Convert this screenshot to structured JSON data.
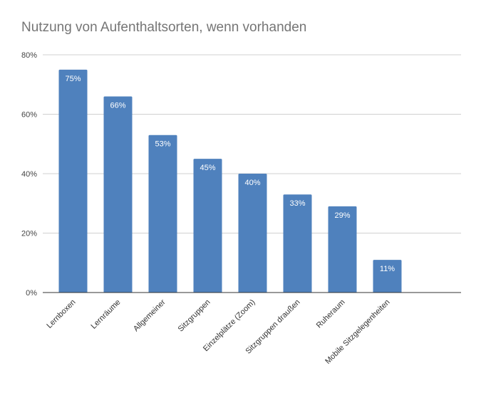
{
  "chart_data": {
    "type": "bar",
    "title": "Nutzung von Aufenthaltsorten, wenn vorhanden",
    "xlabel": "",
    "ylabel": "",
    "categories": [
      "Lernboxen",
      "Lernräume",
      "Allgemeiner",
      "Sitzgruppen",
      "Einzelplätze (Zoom)",
      "Sitzgruppen draußen",
      "Ruheraum",
      "Mobile Sitzgelegenheiten"
    ],
    "values": [
      75,
      66,
      53,
      45,
      40,
      33,
      29,
      11
    ],
    "data_labels": [
      "75%",
      "66%",
      "53%",
      "45%",
      "40%",
      "33%",
      "29%",
      "11%"
    ],
    "ylim": [
      0,
      80
    ],
    "yticks": [
      0,
      20,
      40,
      60,
      80
    ],
    "ytick_labels": [
      "0%",
      "20%",
      "40%",
      "60%",
      "80%"
    ],
    "grid": true,
    "legend": "none",
    "colors": {
      "bar": "#4f81bd",
      "grid": "#d0d0d0",
      "axis": "#333333",
      "title": "#757575"
    }
  }
}
